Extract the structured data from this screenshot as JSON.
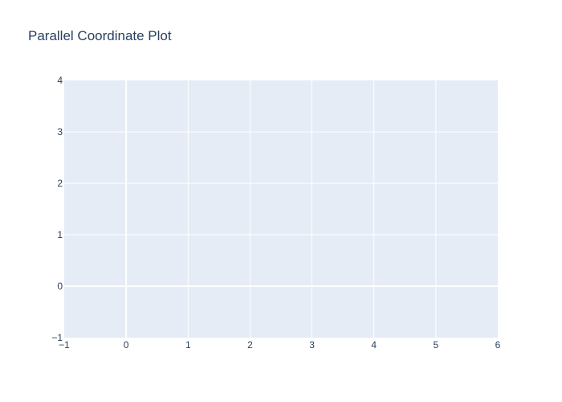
{
  "chart_data": {
    "type": "line",
    "title": "Parallel Coordinate Plot",
    "xlabel": "",
    "ylabel": "",
    "xlim": [
      -1,
      6
    ],
    "ylim": [
      -1,
      4
    ],
    "x_ticks": [
      "−1",
      "0",
      "1",
      "2",
      "3",
      "4",
      "5",
      "6"
    ],
    "y_ticks": [
      "−1",
      "0",
      "1",
      "2",
      "3",
      "4"
    ],
    "grid": true,
    "series": []
  },
  "colors": {
    "plot_background": "#e5ecf6",
    "grid": "#ffffff",
    "text": "#2a3f5f"
  }
}
